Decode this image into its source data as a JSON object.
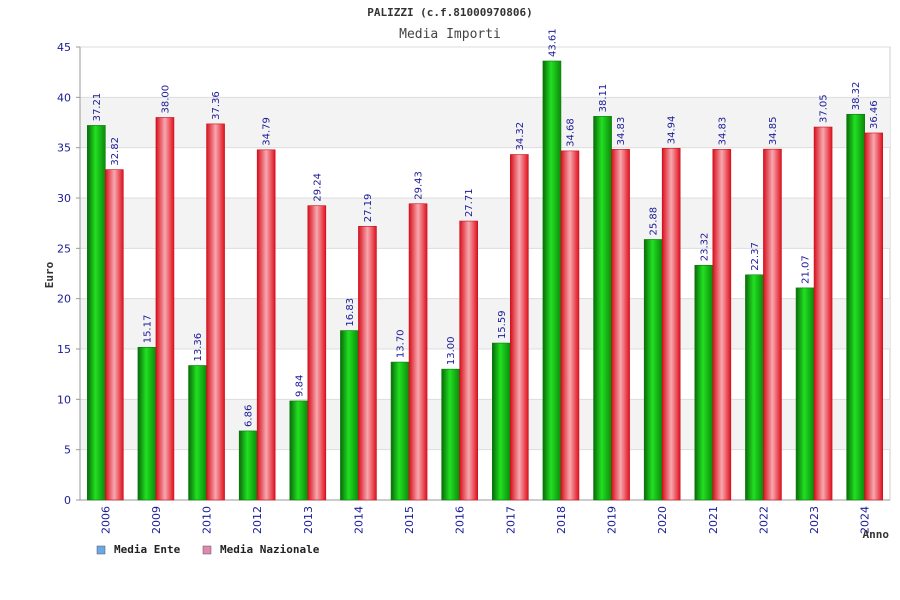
{
  "chart_data": {
    "type": "bar",
    "title": "PALIZZI (c.f.81000970806)",
    "subtitle": "Media Importi",
    "xlabel": "Anno",
    "ylabel": "Euro",
    "ylim": [
      0,
      45
    ],
    "yticks": [
      "0",
      "5",
      "10",
      "15",
      "20",
      "25",
      "30",
      "35",
      "40",
      "45"
    ],
    "grid": true,
    "legend_position": "bottom-left",
    "categories": [
      "2006",
      "2009",
      "2010",
      "2012",
      "2013",
      "2014",
      "2015",
      "2016",
      "2017",
      "2018",
      "2019",
      "2020",
      "2021",
      "2022",
      "2023",
      "2024"
    ],
    "series": [
      {
        "name": "Media Ente",
        "legend_color": "#6aa8e8",
        "bar_color": "#10a010",
        "values": [
          37.21,
          15.17,
          13.36,
          6.86,
          9.84,
          16.83,
          13.7,
          13.0,
          15.59,
          43.61,
          38.11,
          25.88,
          23.32,
          22.37,
          21.07,
          38.32
        ],
        "labels": [
          "37.21",
          "15.17",
          "13.36",
          "6.86",
          "9.84",
          "16.83",
          "13.70",
          "13.00",
          "15.59",
          "43.61",
          "38.11",
          "25.88",
          "23.32",
          "22.37",
          "21.07",
          "38.32"
        ]
      },
      {
        "name": "Media Nazionale",
        "legend_color": "#e088b0",
        "bar_color": "#e51e2b",
        "values": [
          32.82,
          38.0,
          37.36,
          34.79,
          29.24,
          27.19,
          29.43,
          27.71,
          34.32,
          34.68,
          34.83,
          34.94,
          34.83,
          34.85,
          37.05,
          36.46
        ],
        "labels": [
          "32.82",
          "38.00",
          "37.36",
          "34.79",
          "29.24",
          "27.19",
          "29.43",
          "27.71",
          "34.32",
          "34.68",
          "34.83",
          "34.94",
          "34.83",
          "34.85",
          "37.05",
          "36.46"
        ]
      }
    ]
  }
}
